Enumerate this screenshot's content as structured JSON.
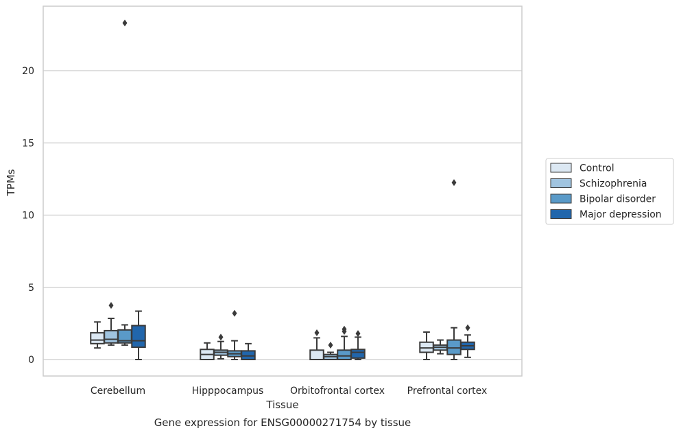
{
  "chart_data": {
    "type": "box",
    "title": "",
    "caption": "Gene expression for ENSG00000271754 by tissue",
    "xlabel": "Tissue",
    "ylabel": "TPMs",
    "ylim": [
      -1.1,
      24.4
    ],
    "yticks": [
      0,
      5,
      10,
      15,
      20
    ],
    "grid": true,
    "legend_position": "right",
    "categories": [
      "Cerebellum",
      "Hipppocampus",
      "Orbitofrontal cortex",
      "Prefrontal cortex"
    ],
    "series": [
      {
        "name": "Control",
        "color": "#dce8f3",
        "boxes": [
          {
            "whisker_low": 0.8,
            "q1": 1.1,
            "median": 1.35,
            "q3": 1.85,
            "whisker_high": 2.6,
            "outliers": []
          },
          {
            "whisker_low": 0.0,
            "q1": 0.0,
            "median": 0.35,
            "q3": 0.7,
            "whisker_high": 1.15,
            "outliers": []
          },
          {
            "whisker_low": 0.0,
            "q1": 0.0,
            "median": 0.0,
            "q3": 0.65,
            "whisker_high": 1.5,
            "outliers": [
              1.85
            ]
          },
          {
            "whisker_low": 0.0,
            "q1": 0.5,
            "median": 0.8,
            "q3": 1.2,
            "whisker_high": 1.9,
            "outliers": []
          }
        ]
      },
      {
        "name": "Schizophrenia",
        "color": "#a0c4e0",
        "boxes": [
          {
            "whisker_low": 1.0,
            "q1": 1.15,
            "median": 1.4,
            "q3": 2.0,
            "whisker_high": 2.85,
            "outliers": [
              3.75
            ]
          },
          {
            "whisker_low": 0.05,
            "q1": 0.3,
            "median": 0.5,
            "q3": 0.65,
            "whisker_high": 1.25,
            "outliers": [
              1.55
            ]
          },
          {
            "whisker_low": 0.0,
            "q1": 0.0,
            "median": 0.2,
            "q3": 0.35,
            "whisker_high": 0.5,
            "outliers": [
              1.0
            ]
          },
          {
            "whisker_low": 0.4,
            "q1": 0.65,
            "median": 0.85,
            "q3": 1.0,
            "whisker_high": 1.35,
            "outliers": []
          }
        ]
      },
      {
        "name": "Bipolar disorder",
        "color": "#5a9ac8",
        "boxes": [
          {
            "whisker_low": 1.0,
            "q1": 1.15,
            "median": 1.3,
            "q3": 2.05,
            "whisker_high": 2.4,
            "outliers": []
          },
          {
            "whisker_low": 0.0,
            "q1": 0.2,
            "median": 0.4,
            "q3": 0.6,
            "whisker_high": 1.3,
            "outliers": [
              3.2
            ]
          },
          {
            "whisker_low": 0.0,
            "q1": 0.0,
            "median": 0.25,
            "q3": 0.65,
            "whisker_high": 1.6,
            "outliers": [
              1.95,
              2.1
            ]
          },
          {
            "whisker_low": 0.0,
            "q1": 0.35,
            "median": 0.8,
            "q3": 1.35,
            "whisker_high": 2.2,
            "outliers": [
              12.25
            ]
          }
        ]
      },
      {
        "name": "Major depression",
        "color": "#2166ac",
        "boxes": [
          {
            "whisker_low": 0.0,
            "q1": 0.85,
            "median": 1.3,
            "q3": 2.35,
            "whisker_high": 3.35,
            "outliers": []
          },
          {
            "whisker_low": 0.0,
            "q1": 0.0,
            "median": 0.25,
            "q3": 0.6,
            "whisker_high": 1.1,
            "outliers": []
          },
          {
            "whisker_low": 0.0,
            "q1": 0.1,
            "median": 0.5,
            "q3": 0.7,
            "whisker_high": 1.55,
            "outliers": [
              1.8
            ]
          },
          {
            "whisker_low": 0.15,
            "q1": 0.7,
            "median": 0.95,
            "q3": 1.2,
            "whisker_high": 1.7,
            "outliers": [
              2.2
            ]
          }
        ]
      }
    ]
  },
  "outlier_cerebellum_extreme": 23.3
}
